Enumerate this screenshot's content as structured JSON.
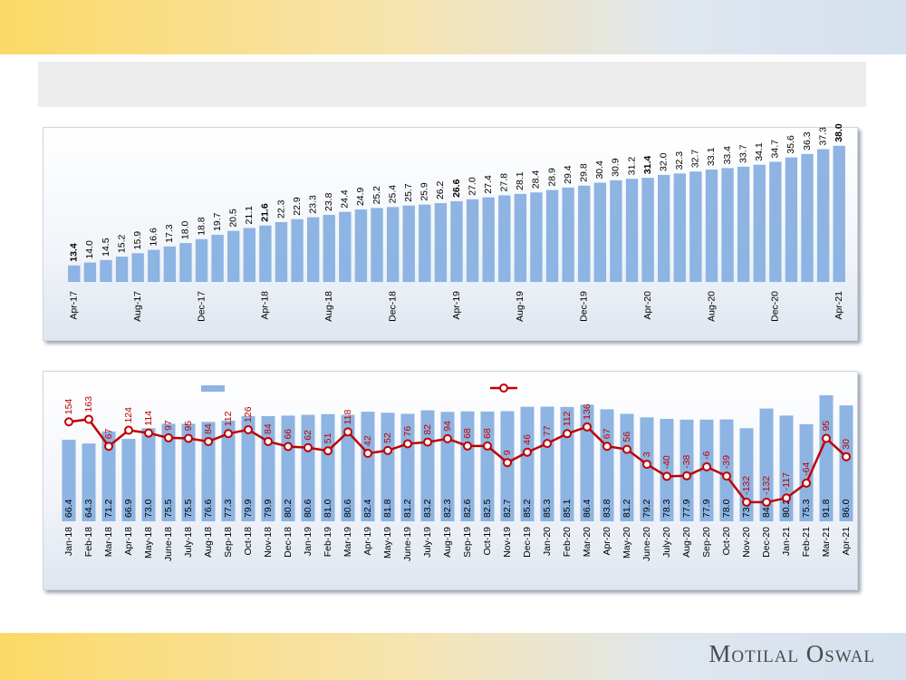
{
  "chart_data": [
    {
      "type": "bar",
      "categories": [
        "Apr-17",
        null,
        null,
        null,
        "Aug-17",
        null,
        null,
        null,
        "Dec-17",
        null,
        null,
        null,
        "Apr-18",
        null,
        null,
        null,
        "Aug-18",
        null,
        null,
        null,
        "Dec-18",
        null,
        null,
        null,
        "Apr-19",
        null,
        null,
        null,
        "Aug-19",
        null,
        null,
        null,
        "Dec-19",
        null,
        null,
        null,
        "Apr-20",
        null,
        null,
        null,
        "Aug-20",
        null,
        null,
        null,
        "Dec-20",
        null,
        null,
        null,
        "Apr-21"
      ],
      "values": [
        13.4,
        14.0,
        14.5,
        15.2,
        15.9,
        16.6,
        17.3,
        18.0,
        18.8,
        19.7,
        20.5,
        21.1,
        21.6,
        22.3,
        22.9,
        23.3,
        23.8,
        24.4,
        24.9,
        25.2,
        25.4,
        25.7,
        25.9,
        26.2,
        26.6,
        27.0,
        27.4,
        27.8,
        28.1,
        28.4,
        28.9,
        29.4,
        29.8,
        30.4,
        30.9,
        31.2,
        31.4,
        32.0,
        32.3,
        32.7,
        33.1,
        33.4,
        33.7,
        34.1,
        34.7,
        35.6,
        36.3,
        37.3,
        38.0
      ],
      "value_labels": [
        "13.4",
        "14.0",
        "14.5",
        "15.2",
        "15.9",
        "16.6",
        "17.3",
        "18.0",
        "18.8",
        "19.7",
        "20.5",
        "21.1",
        "21.6",
        "22.3",
        "22.9",
        "23.3",
        "23.8",
        "24.4",
        "24.9",
        "25.2",
        "25.4",
        "25.7",
        "25.9",
        "26.2",
        "26.6",
        "27.0",
        "27.4",
        "27.8",
        "28.1",
        "28.4",
        "28.9",
        "29.4",
        "29.8",
        "30.4",
        "30.9",
        "31.2",
        "31.4",
        "32.0",
        "32.3",
        "32.7",
        "33.1",
        "33.4",
        "33.7",
        "34.1",
        "34.7",
        "35.6",
        "36.3",
        "37.3",
        "38.0"
      ],
      "color": "#8db4e2",
      "ylim": [
        10,
        40
      ]
    },
    {
      "type": "bar-line",
      "categories": [
        "Jan-18",
        "Feb-18",
        "Mar-18",
        "Apr-18",
        "May-18",
        "June-18",
        "July-18",
        "Aug-18",
        "Sep-18",
        "Oct-18",
        "Nov-18",
        "Dec-18",
        "Jan-19",
        "Feb-19",
        "Mar-19",
        "Apr-19",
        "May-19",
        "June-19",
        "July-19",
        "Aug-19",
        "Sep-19",
        "Oct-19",
        "Nov-19",
        "Dec-19",
        "Jan-20",
        "Feb-20",
        "Mar-20",
        "Apr-20",
        "May-20",
        "June-20",
        "July-20",
        "Aug-20",
        "Sep-20",
        "Oct-20",
        "Nov-20",
        "Dec-20",
        "Jan-21",
        "Feb-21",
        "Mar-21",
        "Apr-21"
      ],
      "series": [
        {
          "color": "#8db4e2",
          "values": [
            66.4,
            64.3,
            71.2,
            66.9,
            73.0,
            75.5,
            75.5,
            76.6,
            77.3,
            79.9,
            79.9,
            80.2,
            80.6,
            81.0,
            80.6,
            82.4,
            81.8,
            81.2,
            83.2,
            82.3,
            82.6,
            82.5,
            82.7,
            85.2,
            85.3,
            85.1,
            86.4,
            83.8,
            81.2,
            79.2,
            78.3,
            77.9,
            77.9,
            78.0,
            73.0,
            84.2,
            80.2,
            75.3,
            91.8,
            86.0
          ],
          "value_labels": [
            "66.4",
            "64.3",
            "71.2",
            "66.9",
            "73.0",
            "75.5",
            "75.5",
            "76.6",
            "77.3",
            "79.9",
            "79.9",
            "80.2",
            "80.6",
            "81.0",
            "80.6",
            "82.4",
            "81.8",
            "81.2",
            "83.2",
            "82.3",
            "82.6",
            "82.5",
            "82.7",
            "85.2",
            "85.3",
            "85.1",
            "86.4",
            "83.8",
            "81.2",
            "79.2",
            "78.3",
            "77.9",
            "77.9",
            "78.0",
            "73.0",
            "84.2",
            "80.2",
            "75.3",
            "91.8",
            "86.0"
          ]
        },
        {
          "color": "#c00000",
          "axis": "y2",
          "values": [
            154,
            163,
            67,
            124,
            114,
            97,
            95,
            84,
            112,
            126,
            84,
            66,
            62,
            51,
            118,
            42,
            52,
            76,
            82,
            94,
            68,
            68,
            9,
            46,
            77,
            112,
            136,
            67,
            56,
            3,
            -40,
            -38,
            -6,
            -39,
            -132,
            -132,
            -117,
            -64,
            95,
            30
          ]
        }
      ],
      "ylim": [
        20,
        100
      ],
      "y2lim": [
        -200,
        300
      ],
      "legend": "top"
    }
  ],
  "footer": {
    "brand": "Motilal Oswal"
  }
}
